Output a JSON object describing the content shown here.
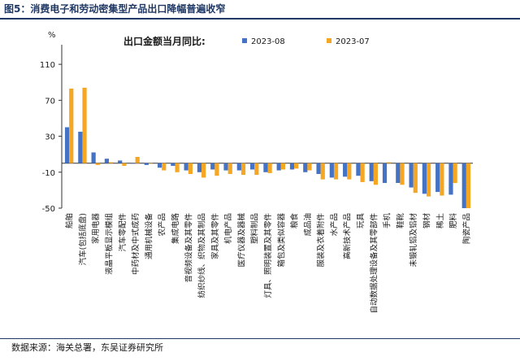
{
  "figure": {
    "title": "图5：消费电子和劳动密集型产品出口降幅普遍收窄",
    "source": "数据来源：海关总署，东吴证券研究所"
  },
  "chart_data": {
    "type": "bar",
    "title": "出口金额当月同比:",
    "ylabel": "%",
    "ylim": [
      -50,
      130
    ],
    "yticks": [
      -50,
      -10,
      30,
      70,
      110
    ],
    "grid": false,
    "legend_position": "top-center",
    "categories": [
      "船舶",
      "汽车(包括底盘)",
      "家用电器",
      "液晶平板显示模组",
      "汽车零配件",
      "中药材及中式成药",
      "通用机械设备",
      "农产品",
      "集成电路",
      "音视频设备及其零件",
      "纺织纱线、织物及其制品",
      "家具及其零件",
      "机电产品",
      "医疗仪器及器械",
      "塑料制品",
      "灯具、照明装置及其零件",
      "箱包及类似容器",
      "粮食",
      "成品油",
      "服装及衣着附件",
      "水产品",
      "高新技术产品",
      "玩具",
      "自动数据处理设备及其零部件",
      "手机",
      "鞋靴",
      "未锻轧铝及铝材",
      "钢材",
      "稀土",
      "肥料",
      "陶瓷产品"
    ],
    "series": [
      {
        "name": "2023-08",
        "color": "#4472c4",
        "values": [
          40,
          35,
          12,
          5,
          3,
          0,
          -2,
          -5,
          -3,
          -8,
          -10,
          -7,
          -8,
          -8,
          -7,
          -10,
          -8,
          -7,
          -10,
          -12,
          -16,
          -15,
          -14,
          -20,
          -22,
          -22,
          -27,
          -34,
          -32,
          -35,
          -50
        ]
      },
      {
        "name": "2023-07",
        "color": "#f5a623",
        "values": [
          83,
          84,
          -2,
          1,
          -3,
          7,
          0,
          -8,
          -10,
          -12,
          -16,
          -14,
          -12,
          -13,
          -13,
          -11,
          -7,
          -6,
          -8,
          -18,
          -18,
          -18,
          -21,
          -24,
          1,
          -24,
          -33,
          -37,
          -36,
          -22,
          -50
        ]
      }
    ]
  }
}
